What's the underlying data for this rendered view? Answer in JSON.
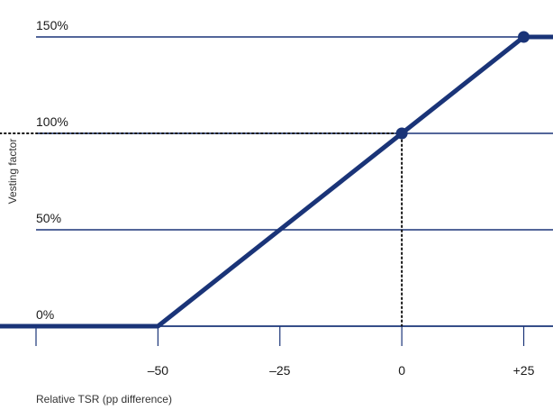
{
  "chart_data": {
    "type": "line",
    "xlabel": "Relative TSR (pp difference)",
    "ylabel": "Vesting factor",
    "xlim": [
      -75,
      31
    ],
    "ylim": [
      0,
      150
    ],
    "y_gridlines": [
      0,
      50,
      100,
      150
    ],
    "y_tick_labels": [
      "0%",
      "50%",
      "100%",
      "150%"
    ],
    "x_ticks": [
      -75,
      -50,
      -25,
      0,
      25
    ],
    "x_tick_labels": [
      "",
      "–50",
      "–25",
      "0",
      "+25"
    ],
    "series": [
      {
        "x": [
          -75,
          -50,
          0,
          25,
          31
        ],
        "y": [
          0,
          0,
          100,
          150,
          150
        ]
      }
    ],
    "markers": [
      {
        "x": 0,
        "y": 100
      },
      {
        "x": 25,
        "y": 150
      }
    ],
    "reference_lines": [
      {
        "kind": "horizontal",
        "y": 100,
        "from_x": -75,
        "to_x": 0,
        "style": "dotted"
      },
      {
        "kind": "vertical",
        "x": 0,
        "from_y": 0,
        "to_y": 100,
        "style": "dotted"
      }
    ],
    "colors": {
      "line": "#1a3478",
      "grid": "#1a3478",
      "text": "#1a1a1a"
    }
  }
}
